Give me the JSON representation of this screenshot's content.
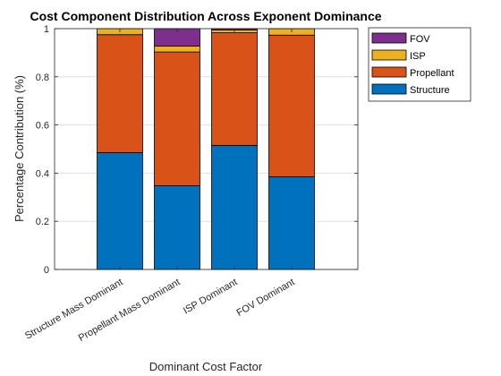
{
  "chart_data": {
    "type": "bar",
    "stacked": true,
    "title": "Cost Component Distribution Across Exponent Dominance",
    "xlabel": "Dominant Cost Factor",
    "ylabel": "Percentage Contribution (%)",
    "categories": [
      "Structure Mass  Dominant",
      "Propellant Mass Dominant",
      "ISP Dominant",
      "FOV Dominant"
    ],
    "ylim": [
      0,
      1
    ],
    "yticks": [
      0,
      0.2,
      0.4,
      0.6,
      0.8,
      1
    ],
    "ytick_labels": [
      "0",
      "0.2",
      "0.4",
      "0.6",
      "0.8",
      "1"
    ],
    "grid": true,
    "legend_position": "outside-top-right",
    "series": [
      {
        "name": "Structure",
        "color": "#0072BD",
        "values": [
          0.485,
          0.348,
          0.515,
          0.385
        ]
      },
      {
        "name": "Propellant",
        "color": "#D95319",
        "values": [
          0.49,
          0.555,
          0.468,
          0.588
        ]
      },
      {
        "name": "ISP",
        "color": "#EDB120",
        "values": [
          0.025,
          0.025,
          0.012,
          0.027
        ]
      },
      {
        "name": "FOV",
        "color": "#7E2F8E",
        "values": [
          0.0,
          0.072,
          0.005,
          0.0
        ]
      }
    ]
  }
}
